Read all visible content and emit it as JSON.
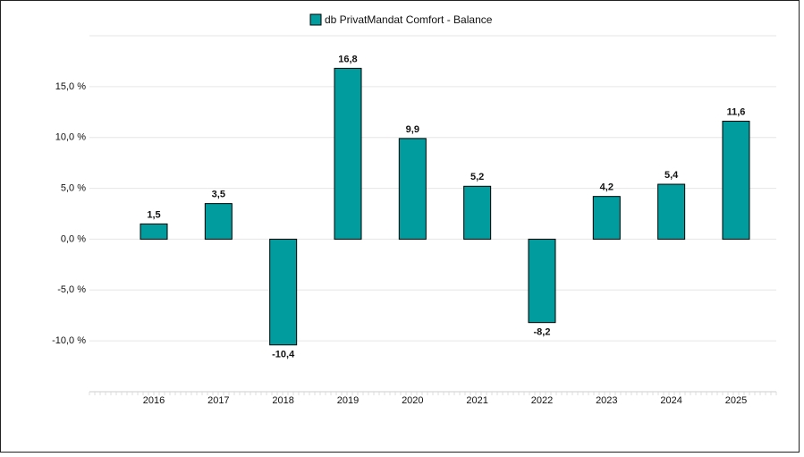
{
  "chart_data": {
    "type": "bar",
    "categories": [
      "2016",
      "2017",
      "2018",
      "2019",
      "2020",
      "2021",
      "2022",
      "2023",
      "2024",
      "2025"
    ],
    "series": [
      {
        "name": "db PrivatMandat Comfort - Balance",
        "color": "#009c9e",
        "values": [
          1.5,
          3.5,
          -10.4,
          16.8,
          9.9,
          5.2,
          -8.2,
          4.2,
          5.4,
          11.6
        ],
        "value_labels": [
          "1,5",
          "3,5",
          "-10,4",
          "16,8",
          "9,9",
          "5,2",
          "-8,2",
          "4,2",
          "5,4",
          "11,6"
        ]
      }
    ],
    "ylim": [
      -15,
      20
    ],
    "yticks": [
      {
        "value": -10,
        "label": "-10,0 %"
      },
      {
        "value": -5,
        "label": "-5,0 %"
      },
      {
        "value": 0,
        "label": "0,0 %"
      },
      {
        "value": 5,
        "label": "5,0 %"
      },
      {
        "value": 10,
        "label": "10,0 %"
      },
      {
        "value": 15,
        "label": "15,0 %"
      }
    ],
    "grid": true,
    "legend": "top"
  }
}
